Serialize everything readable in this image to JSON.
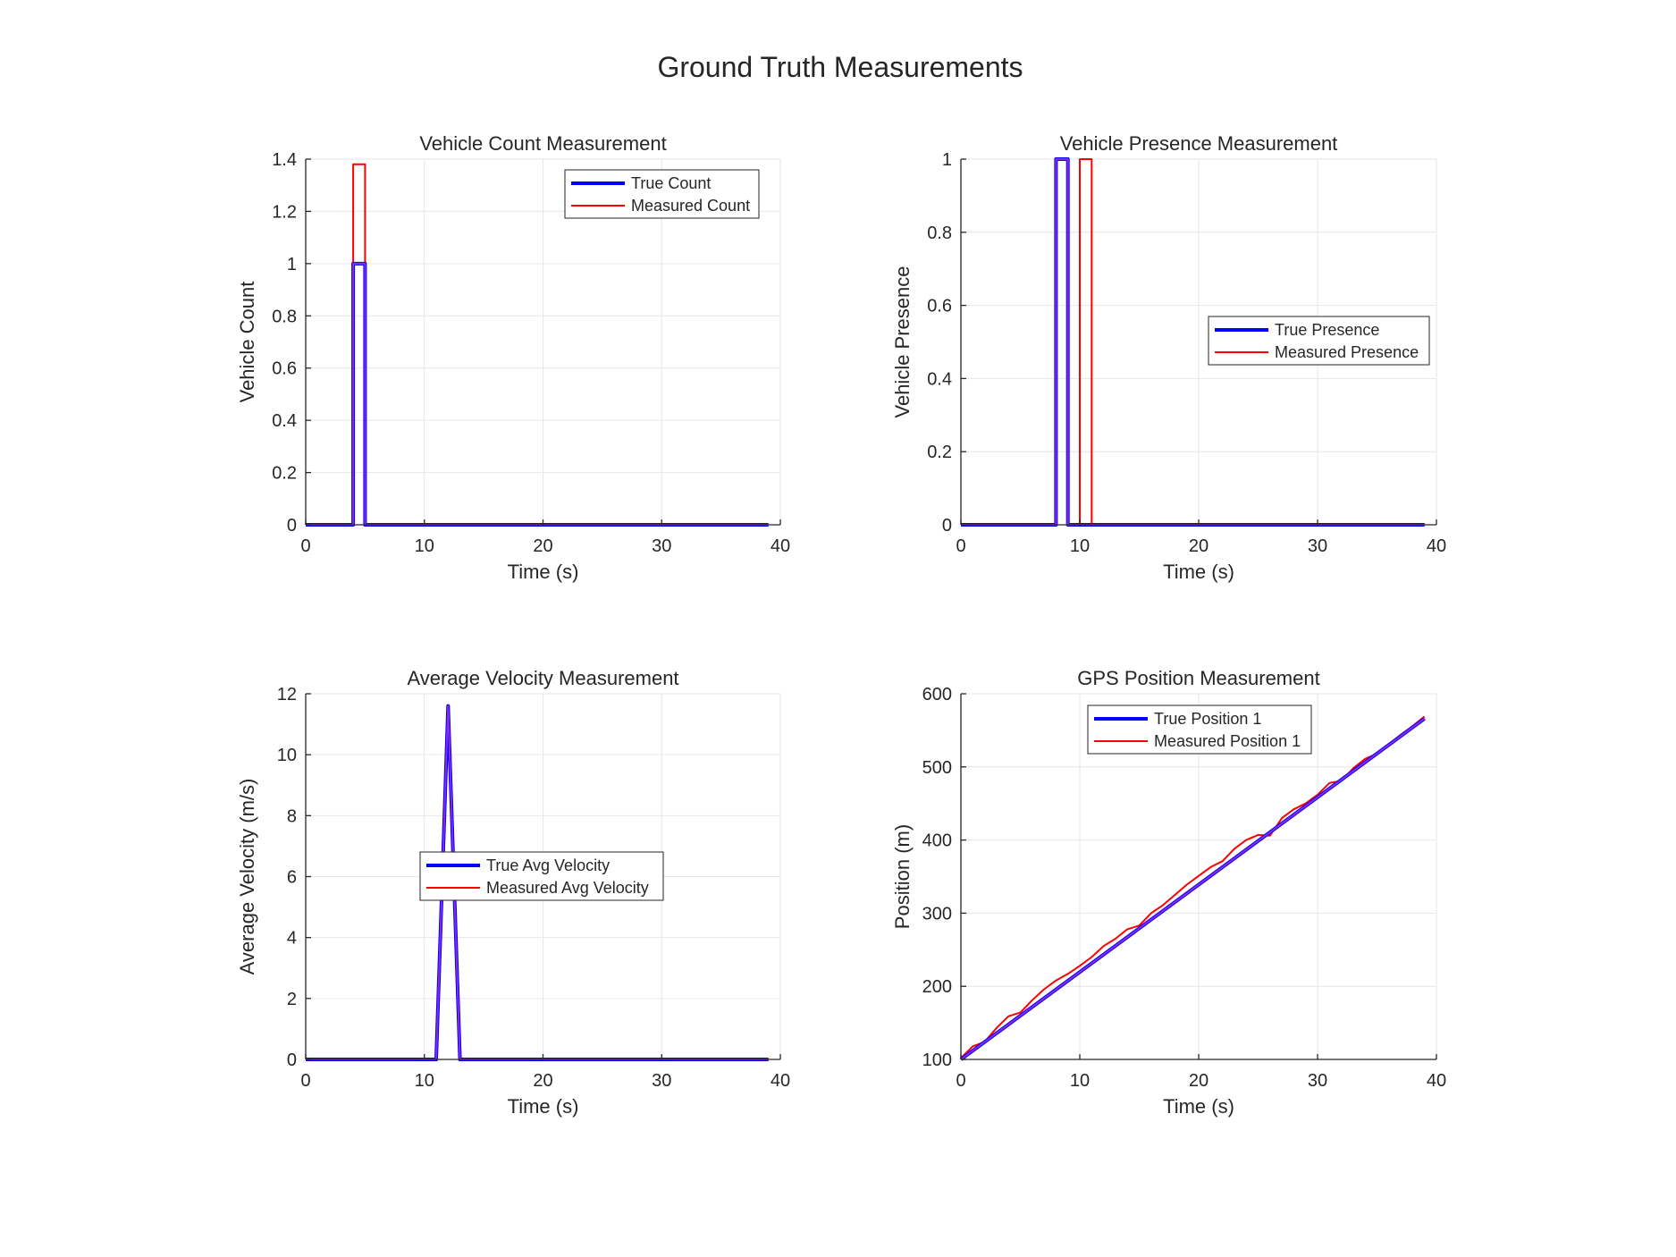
{
  "figure_title": "Ground Truth Measurements",
  "colors": {
    "true_line": "#0000ff",
    "measured_line": "#ff0000",
    "overlap_line": "#8a2be2",
    "grid": "#e6e6e6",
    "axis": "#262626"
  },
  "chart_data": [
    {
      "type": "line",
      "title": "Vehicle Count Measurement",
      "xlabel": "Time (s)",
      "ylabel": "Vehicle Count",
      "xlim": [
        0,
        40
      ],
      "ylim": [
        0,
        1.4
      ],
      "xticks": [
        0,
        10,
        20,
        30,
        40
      ],
      "yticks": [
        0,
        0.2,
        0.4,
        0.6,
        0.8,
        1,
        1.2,
        1.4
      ],
      "ytick_labels": [
        "0",
        "0.2",
        "0.4",
        "0.6",
        "0.8",
        "1",
        "1.2",
        "1.4"
      ],
      "grid": true,
      "legend_position": "top-right",
      "series": [
        {
          "name": "True Count",
          "role": "true",
          "x": [
            0,
            4,
            4,
            5,
            5,
            39
          ],
          "y": [
            0,
            0,
            1,
            1,
            0,
            0
          ]
        },
        {
          "name": "Measured Count",
          "role": "measured",
          "x": [
            0,
            4,
            4,
            5,
            5,
            39
          ],
          "y": [
            0,
            0,
            1.38,
            1.38,
            0,
            0
          ]
        }
      ]
    },
    {
      "type": "line",
      "title": "Vehicle Presence Measurement",
      "xlabel": "Time (s)",
      "ylabel": "Vehicle Presence",
      "xlim": [
        0,
        40
      ],
      "ylim": [
        0,
        1
      ],
      "xticks": [
        0,
        10,
        20,
        30,
        40
      ],
      "yticks": [
        0,
        0.2,
        0.4,
        0.6,
        0.8,
        1
      ],
      "ytick_labels": [
        "0",
        "0.2",
        "0.4",
        "0.6",
        "0.8",
        "1"
      ],
      "grid": true,
      "legend_position": "right",
      "series": [
        {
          "name": "True Presence",
          "role": "true",
          "x": [
            0,
            8,
            8,
            9,
            9,
            39
          ],
          "y": [
            0,
            0,
            1,
            1,
            0,
            0
          ]
        },
        {
          "name": "Measured Presence",
          "role": "measured",
          "x": [
            0,
            8,
            8,
            9,
            9,
            10,
            10,
            11,
            11,
            39
          ],
          "y": [
            0,
            0,
            1,
            1,
            0,
            0,
            1,
            1,
            0,
            0
          ]
        }
      ]
    },
    {
      "type": "line",
      "title": "Average Velocity Measurement",
      "xlabel": "Time (s)",
      "ylabel": "Average Velocity (m/s)",
      "xlim": [
        0,
        40
      ],
      "ylim": [
        0,
        12
      ],
      "xticks": [
        0,
        10,
        20,
        30,
        40
      ],
      "yticks": [
        0,
        2,
        4,
        6,
        8,
        10,
        12
      ],
      "ytick_labels": [
        "0",
        "2",
        "4",
        "6",
        "8",
        "10",
        "12"
      ],
      "grid": true,
      "legend_position": "center",
      "series": [
        {
          "name": "True Avg Velocity",
          "role": "true",
          "x": [
            0,
            11,
            12,
            13,
            39
          ],
          "y": [
            0,
            0,
            11.6,
            0,
            0
          ]
        },
        {
          "name": "Measured Avg Velocity",
          "role": "measured",
          "x": [
            0,
            11,
            12,
            13,
            39
          ],
          "y": [
            0,
            0,
            10.9,
            0,
            0
          ]
        }
      ]
    },
    {
      "type": "line",
      "title": "GPS Position Measurement",
      "xlabel": "Time (s)",
      "ylabel": "Position (m)",
      "xlim": [
        0,
        40
      ],
      "ylim": [
        100,
        600
      ],
      "xticks": [
        0,
        10,
        20,
        30,
        40
      ],
      "yticks": [
        100,
        200,
        300,
        400,
        500,
        600
      ],
      "ytick_labels": [
        "100",
        "200",
        "300",
        "400",
        "500",
        "600"
      ],
      "grid": true,
      "legend_position": "top-left",
      "series": [
        {
          "name": "True Position 1",
          "role": "true",
          "x": [
            0,
            39
          ],
          "y": [
            100,
            566
          ]
        },
        {
          "name": "Measured Position 1",
          "role": "measured",
          "x": [
            0,
            1,
            2,
            3,
            4,
            5,
            6,
            7,
            8,
            9,
            10,
            11,
            12,
            13,
            14,
            15,
            16,
            17,
            18,
            19,
            20,
            21,
            22,
            23,
            24,
            25,
            26,
            27,
            28,
            29,
            30,
            31,
            32,
            33,
            34,
            35,
            36,
            37,
            38,
            39
          ],
          "y": [
            102,
            118,
            124,
            143,
            159,
            164,
            181,
            196,
            208,
            217,
            228,
            240,
            255,
            265,
            278,
            283,
            300,
            311,
            325,
            339,
            351,
            363,
            371,
            388,
            400,
            407,
            406,
            430,
            442,
            450,
            462,
            478,
            481,
            498,
            511,
            518,
            531,
            544,
            556,
            569
          ]
        }
      ]
    }
  ]
}
